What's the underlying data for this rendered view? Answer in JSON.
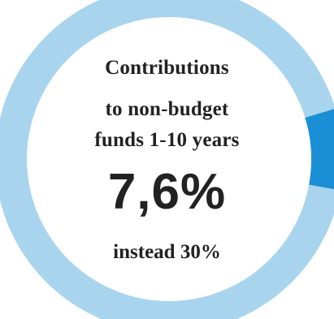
{
  "chart_data": {
    "type": "pie",
    "style": "donut",
    "title_lines": [
      "Contributions",
      "to non-budget",
      "funds 1-10 years"
    ],
    "value_label": "7,6%",
    "subtitle": "instead 30%",
    "slices": [
      {
        "value": 7.6,
        "color": "#1a8fd6"
      },
      {
        "value": 92.4,
        "color": "#a8d4ee"
      }
    ]
  }
}
